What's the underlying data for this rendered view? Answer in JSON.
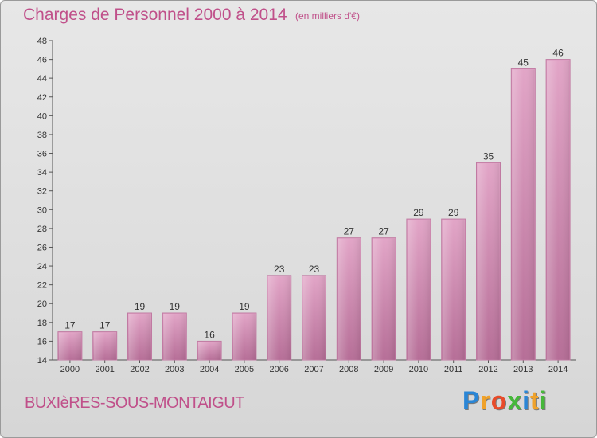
{
  "chart_data": {
    "type": "bar",
    "title": "Charges de Personnel 2000 à 2014",
    "subtitle": "(en milliers d'€)",
    "categories": [
      "2000",
      "2001",
      "2002",
      "2003",
      "2004",
      "2005",
      "2006",
      "2007",
      "2008",
      "2009",
      "2010",
      "2011",
      "2012",
      "2013",
      "2014"
    ],
    "values": [
      17,
      17,
      19,
      19,
      16,
      19,
      23,
      23,
      27,
      27,
      29,
      29,
      35,
      45,
      46
    ],
    "ylim": [
      14,
      48
    ],
    "yticks": [
      14,
      16,
      18,
      20,
      22,
      24,
      26,
      28,
      30,
      32,
      34,
      36,
      38,
      40,
      42,
      44,
      46,
      48
    ],
    "grid": false,
    "legend": "none",
    "bar_color": "#d98bb5"
  },
  "footer": {
    "commune": "BUXIèRES-SOUS-MONTAIGUT",
    "brand_letters": [
      {
        "ch": "P",
        "color": "#2a86d6"
      },
      {
        "ch": "r",
        "color": "#f0a22a"
      },
      {
        "ch": "o",
        "color": "#e84b2a"
      },
      {
        "ch": "x",
        "color": "#46b83a"
      },
      {
        "ch": "i",
        "color": "#2a86d6"
      },
      {
        "ch": "t",
        "color": "#f0a22a"
      },
      {
        "ch": "i",
        "color": "#46b83a"
      }
    ]
  }
}
